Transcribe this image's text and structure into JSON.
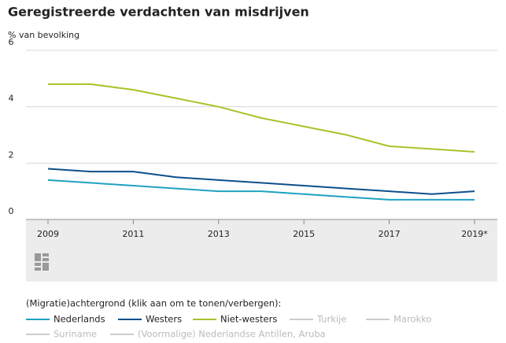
{
  "chart_data": {
    "type": "line",
    "title": "Geregistreerde verdachten van misdrijven",
    "y_label": "% van bevolking",
    "legend_title": "(Migratie)achtergrond (klik aan om te tonen/verbergen):",
    "x": [
      2009,
      2010,
      2011,
      2012,
      2013,
      2014,
      2015,
      2016,
      2017,
      2018,
      2019
    ],
    "xlim": [
      2009,
      2019
    ],
    "xticks": [
      2009,
      2011,
      2013,
      2015,
      2017,
      {
        "value": 2019,
        "label": "2019*"
      }
    ],
    "ylim": [
      0,
      6
    ],
    "yticks": [
      0,
      2,
      4,
      6
    ],
    "grid": true,
    "series": [
      {
        "name": "Nederlands",
        "color": "#1ea2c1",
        "values": [
          1.4,
          1.3,
          1.2,
          1.1,
          1.0,
          1.0,
          0.9,
          0.8,
          0.7,
          0.7,
          0.7
        ]
      },
      {
        "name": "Westers",
        "color": "#0c4f8a",
        "values": [
          1.8,
          1.7,
          1.7,
          1.5,
          1.4,
          1.3,
          1.2,
          1.1,
          1.0,
          0.9,
          1.0
        ]
      },
      {
        "name": "Niet-westers",
        "color": "#a6c42a",
        "values": [
          4.8,
          4.8,
          4.6,
          4.3,
          4.0,
          3.6,
          3.3,
          3.0,
          2.6,
          2.5,
          2.4
        ]
      },
      {
        "name": "Turkije",
        "color": "#cccccc",
        "hidden": true
      },
      {
        "name": "Marokko",
        "color": "#cccccc",
        "hidden": true
      },
      {
        "name": "Suriname",
        "color": "#cccccc",
        "hidden": true
      },
      {
        "name": "(Voormalige) Nederlandse Antillen, Aruba",
        "color": "#cccccc",
        "hidden": true
      }
    ]
  }
}
